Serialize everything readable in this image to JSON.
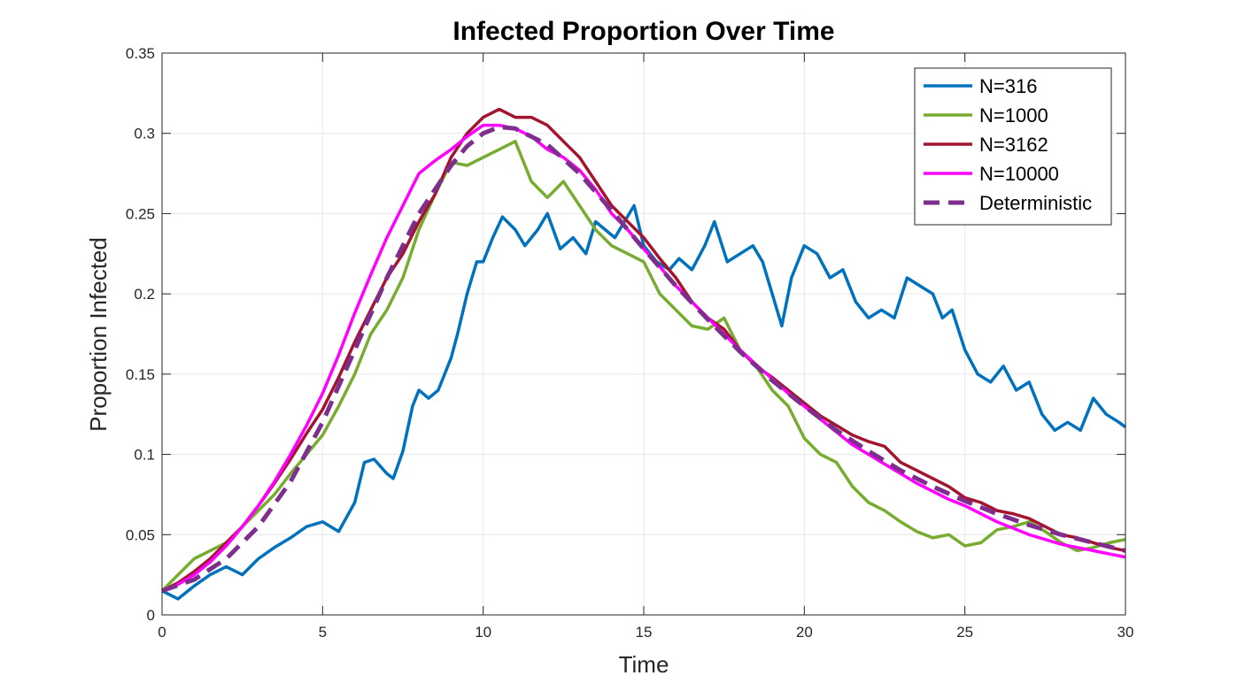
{
  "chart_data": {
    "type": "line",
    "title": "Infected Proportion Over Time",
    "xlabel": "Time",
    "ylabel": "Proportion Infected",
    "xlim": [
      0,
      30
    ],
    "ylim": [
      0,
      0.35
    ],
    "xticks": [
      "0",
      "5",
      "10",
      "15",
      "20",
      "25",
      "30"
    ],
    "yticks": [
      "0",
      "0.05",
      "0.1",
      "0.15",
      "0.2",
      "0.25",
      "0.3",
      "0.35"
    ],
    "grid": true,
    "legend_position": "top-right",
    "series": [
      {
        "name": "N=316",
        "color": "#0072BD",
        "dash": false,
        "x": [
          0,
          0.5,
          1,
          1.5,
          2,
          2.5,
          3,
          3.5,
          4,
          4.5,
          5,
          5.5,
          6,
          6.3,
          6.6,
          7,
          7.2,
          7.5,
          7.8,
          8,
          8.3,
          8.6,
          9,
          9.2,
          9.5,
          9.8,
          10,
          10.3,
          10.6,
          11,
          11.3,
          11.7,
          12,
          12.4,
          12.8,
          13.2,
          13.5,
          13.8,
          14.1,
          14.4,
          14.7,
          15,
          15.4,
          15.8,
          16.1,
          16.5,
          16.9,
          17.2,
          17.6,
          18,
          18.4,
          18.7,
          19,
          19.3,
          19.6,
          20,
          20.4,
          20.8,
          21.2,
          21.6,
          22,
          22.4,
          22.8,
          23.2,
          23.6,
          24,
          24.3,
          24.6,
          25,
          25.4,
          25.8,
          26.2,
          26.6,
          27,
          27.4,
          27.8,
          28.2,
          28.6,
          29,
          29.4,
          29.8,
          30
        ],
        "y": [
          0.015,
          0.01,
          0.018,
          0.025,
          0.03,
          0.025,
          0.035,
          0.042,
          0.048,
          0.055,
          0.058,
          0.052,
          0.07,
          0.095,
          0.097,
          0.088,
          0.085,
          0.102,
          0.13,
          0.14,
          0.135,
          0.14,
          0.16,
          0.175,
          0.2,
          0.22,
          0.22,
          0.235,
          0.248,
          0.24,
          0.23,
          0.24,
          0.25,
          0.228,
          0.235,
          0.225,
          0.245,
          0.24,
          0.235,
          0.245,
          0.255,
          0.23,
          0.22,
          0.215,
          0.222,
          0.215,
          0.23,
          0.245,
          0.22,
          0.225,
          0.23,
          0.22,
          0.2,
          0.18,
          0.21,
          0.23,
          0.225,
          0.21,
          0.215,
          0.195,
          0.185,
          0.19,
          0.185,
          0.21,
          0.205,
          0.2,
          0.185,
          0.19,
          0.165,
          0.15,
          0.145,
          0.155,
          0.14,
          0.145,
          0.125,
          0.115,
          0.12,
          0.115,
          0.135,
          0.125,
          0.12,
          0.117
        ]
      },
      {
        "name": "N=1000",
        "color": "#77AC30",
        "dash": false,
        "x": [
          0,
          0.5,
          1,
          1.5,
          2,
          2.5,
          3,
          3.5,
          4,
          4.5,
          5,
          5.5,
          6,
          6.5,
          7,
          7.5,
          8,
          8.5,
          9,
          9.5,
          10,
          10.5,
          11,
          11.5,
          12,
          12.5,
          13,
          13.5,
          14,
          14.5,
          15,
          15.5,
          16,
          16.5,
          17,
          17.5,
          18,
          18.5,
          19,
          19.5,
          20,
          20.5,
          21,
          21.5,
          22,
          22.5,
          23,
          23.5,
          24,
          24.5,
          25,
          25.5,
          26,
          26.5,
          27,
          27.5,
          28,
          28.5,
          29,
          29.5,
          30
        ],
        "y": [
          0.015,
          0.025,
          0.035,
          0.04,
          0.045,
          0.055,
          0.065,
          0.075,
          0.088,
          0.1,
          0.112,
          0.13,
          0.15,
          0.175,
          0.19,
          0.21,
          0.24,
          0.262,
          0.282,
          0.28,
          0.285,
          0.29,
          0.295,
          0.27,
          0.26,
          0.27,
          0.255,
          0.24,
          0.23,
          0.225,
          0.22,
          0.2,
          0.19,
          0.18,
          0.178,
          0.185,
          0.165,
          0.155,
          0.14,
          0.13,
          0.11,
          0.1,
          0.095,
          0.08,
          0.07,
          0.065,
          0.058,
          0.052,
          0.048,
          0.05,
          0.043,
          0.045,
          0.053,
          0.055,
          0.058,
          0.052,
          0.045,
          0.04,
          0.042,
          0.045,
          0.047
        ]
      },
      {
        "name": "N=3162",
        "color": "#A2142F",
        "dash": false,
        "x": [
          0,
          0.5,
          1,
          1.5,
          2,
          2.5,
          3,
          3.5,
          4,
          4.5,
          5,
          5.5,
          6,
          6.5,
          7,
          7.5,
          8,
          8.5,
          9,
          9.5,
          10,
          10.5,
          11,
          11.5,
          12,
          12.5,
          13,
          13.5,
          14,
          14.5,
          15,
          15.5,
          16,
          16.5,
          17,
          17.5,
          18,
          18.5,
          19,
          19.5,
          20,
          20.5,
          21,
          21.5,
          22,
          22.5,
          23,
          23.5,
          24,
          24.5,
          25,
          25.5,
          26,
          26.5,
          27,
          27.5,
          28,
          28.5,
          29,
          29.5,
          30
        ],
        "y": [
          0.015,
          0.02,
          0.027,
          0.035,
          0.045,
          0.055,
          0.068,
          0.082,
          0.097,
          0.113,
          0.128,
          0.148,
          0.17,
          0.19,
          0.21,
          0.225,
          0.245,
          0.262,
          0.285,
          0.3,
          0.31,
          0.315,
          0.31,
          0.31,
          0.305,
          0.295,
          0.285,
          0.27,
          0.255,
          0.245,
          0.235,
          0.222,
          0.21,
          0.195,
          0.185,
          0.178,
          0.165,
          0.155,
          0.148,
          0.14,
          0.132,
          0.124,
          0.118,
          0.112,
          0.108,
          0.105,
          0.095,
          0.09,
          0.085,
          0.08,
          0.073,
          0.07,
          0.065,
          0.063,
          0.06,
          0.055,
          0.05,
          0.048,
          0.045,
          0.042,
          0.04
        ]
      },
      {
        "name": "N=10000",
        "color": "#FF00FF",
        "dash": false,
        "x": [
          0,
          0.5,
          1,
          1.5,
          2,
          2.5,
          3,
          3.5,
          4,
          4.5,
          5,
          5.5,
          6,
          6.5,
          7,
          7.5,
          8,
          8.5,
          9,
          9.5,
          10,
          10.5,
          11,
          11.5,
          12,
          12.5,
          13,
          13.5,
          14,
          14.5,
          15,
          15.5,
          16,
          16.5,
          17,
          17.5,
          18,
          18.5,
          19,
          19.5,
          20,
          20.5,
          21,
          21.5,
          22,
          22.5,
          23,
          23.5,
          24,
          24.5,
          25,
          25.5,
          26,
          26.5,
          27,
          27.5,
          28,
          28.5,
          29,
          29.5,
          30
        ],
        "y": [
          0.015,
          0.019,
          0.025,
          0.033,
          0.043,
          0.055,
          0.068,
          0.083,
          0.1,
          0.118,
          0.138,
          0.162,
          0.188,
          0.212,
          0.235,
          0.255,
          0.275,
          0.283,
          0.29,
          0.298,
          0.305,
          0.305,
          0.303,
          0.298,
          0.29,
          0.285,
          0.277,
          0.265,
          0.25,
          0.24,
          0.228,
          0.217,
          0.205,
          0.195,
          0.185,
          0.175,
          0.165,
          0.156,
          0.147,
          0.138,
          0.13,
          0.122,
          0.114,
          0.106,
          0.1,
          0.094,
          0.088,
          0.082,
          0.077,
          0.072,
          0.068,
          0.063,
          0.058,
          0.054,
          0.05,
          0.047,
          0.044,
          0.042,
          0.04,
          0.038,
          0.036
        ]
      },
      {
        "name": "Deterministic",
        "color": "#7E2F8E",
        "dash": true,
        "x": [
          0,
          1,
          2,
          3,
          4,
          5,
          6,
          7,
          8,
          9,
          9.5,
          10,
          10.5,
          11,
          12,
          13,
          14,
          15,
          16,
          17,
          18,
          19,
          20,
          21,
          22,
          23,
          24,
          25,
          26,
          27,
          28,
          29,
          30
        ],
        "y": [
          0.015,
          0.022,
          0.035,
          0.055,
          0.083,
          0.12,
          0.165,
          0.21,
          0.25,
          0.28,
          0.292,
          0.3,
          0.304,
          0.303,
          0.293,
          0.275,
          0.252,
          0.228,
          0.205,
          0.184,
          0.164,
          0.146,
          0.13,
          0.115,
          0.102,
          0.09,
          0.08,
          0.071,
          0.063,
          0.056,
          0.05,
          0.045,
          0.04
        ]
      }
    ]
  }
}
